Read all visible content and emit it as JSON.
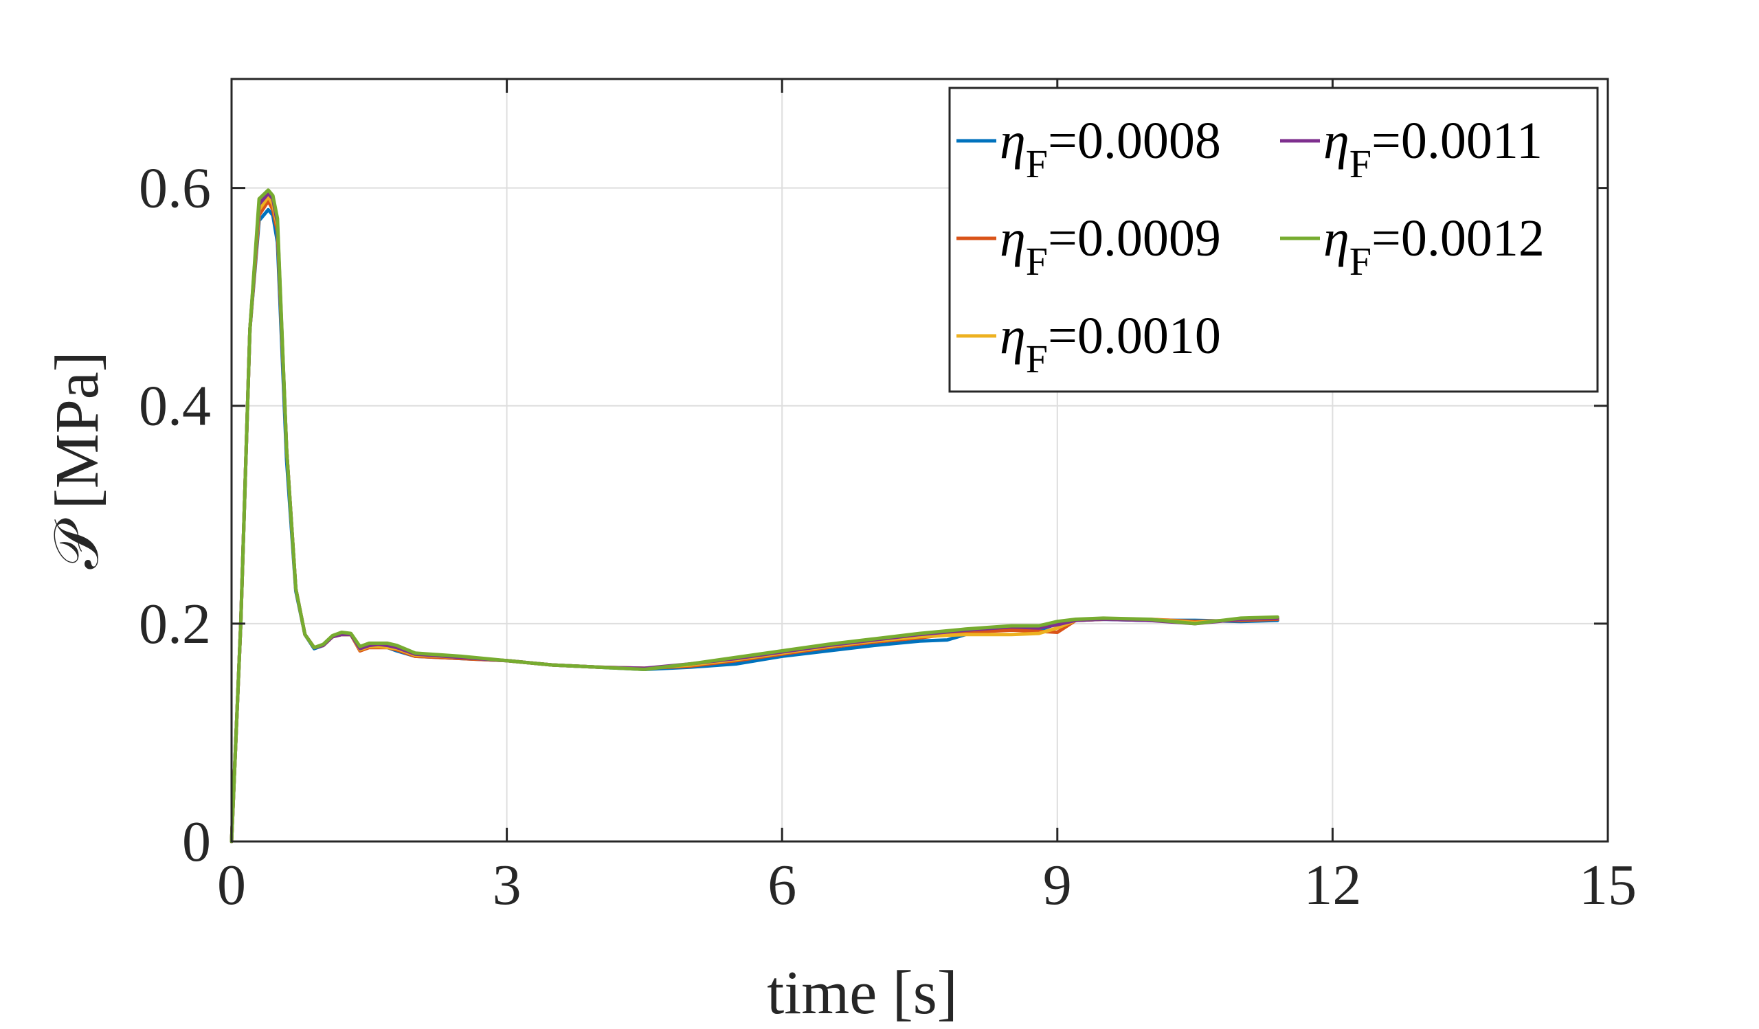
{
  "chart_data": {
    "type": "line",
    "title": "",
    "xlabel": "time [s]",
    "ylabel": "𝒫 [MPa]",
    "xlim": [
      0,
      15
    ],
    "ylim": [
      0,
      0.7
    ],
    "xticks": [
      0,
      3,
      6,
      9,
      12,
      15
    ],
    "xtick_labels": [
      "0",
      "3",
      "6",
      "9",
      "12",
      "15"
    ],
    "yticks": [
      0,
      0.2,
      0.4,
      0.6
    ],
    "ytick_labels": [
      "0",
      "0.2",
      "0.4",
      "0.6"
    ],
    "grid": true,
    "legend_position": "top-right",
    "legend_symbol": "η",
    "legend_subscript": "F",
    "series": [
      {
        "name": "0.0008",
        "legend_text": "=0.0008",
        "color": "#0072BD",
        "x": [
          0,
          0.1,
          0.2,
          0.3,
          0.4,
          0.45,
          0.5,
          0.6,
          0.7,
          0.8,
          0.9,
          1.0,
          1.1,
          1.2,
          1.3,
          1.4,
          1.5,
          1.6,
          1.7,
          1.8,
          2.0,
          2.5,
          3.0,
          3.5,
          4.0,
          4.5,
          5.0,
          5.5,
          6.0,
          6.5,
          7.0,
          7.5,
          7.8,
          8.0,
          8.5,
          8.8,
          9.0,
          9.2,
          9.5,
          10.0,
          10.5,
          11.0,
          11.4
        ],
        "y": [
          0,
          0.2,
          0.47,
          0.57,
          0.58,
          0.575,
          0.55,
          0.35,
          0.23,
          0.19,
          0.177,
          0.18,
          0.188,
          0.19,
          0.19,
          0.178,
          0.18,
          0.18,
          0.178,
          0.175,
          0.17,
          0.168,
          0.166,
          0.162,
          0.16,
          0.158,
          0.16,
          0.163,
          0.17,
          0.175,
          0.18,
          0.184,
          0.185,
          0.19,
          0.196,
          0.194,
          0.2,
          0.203,
          0.204,
          0.203,
          0.203,
          0.202,
          0.203
        ]
      },
      {
        "name": "0.0009",
        "legend_text": "=0.0009",
        "color": "#D95319",
        "x": [
          0,
          0.1,
          0.2,
          0.3,
          0.4,
          0.45,
          0.5,
          0.6,
          0.7,
          0.8,
          0.9,
          1.0,
          1.1,
          1.2,
          1.3,
          1.4,
          1.5,
          1.6,
          1.7,
          1.8,
          2.0,
          2.5,
          3.0,
          3.5,
          4.0,
          4.5,
          5.0,
          5.5,
          6.0,
          6.5,
          7.0,
          7.5,
          8.0,
          8.5,
          8.8,
          9.0,
          9.2,
          9.5,
          10.0,
          10.5,
          11.0,
          11.4
        ],
        "y": [
          0,
          0.2,
          0.47,
          0.575,
          0.588,
          0.58,
          0.56,
          0.36,
          0.232,
          0.19,
          0.178,
          0.18,
          0.188,
          0.19,
          0.19,
          0.175,
          0.178,
          0.178,
          0.178,
          0.176,
          0.17,
          0.168,
          0.166,
          0.162,
          0.16,
          0.159,
          0.161,
          0.166,
          0.172,
          0.178,
          0.183,
          0.187,
          0.192,
          0.194,
          0.193,
          0.192,
          0.203,
          0.204,
          0.204,
          0.202,
          0.203,
          0.204
        ]
      },
      {
        "name": "0.0010",
        "legend_text": "=0.0010",
        "color": "#EDB120",
        "x": [
          0,
          0.1,
          0.2,
          0.3,
          0.4,
          0.45,
          0.5,
          0.6,
          0.7,
          0.8,
          0.9,
          1.0,
          1.1,
          1.2,
          1.3,
          1.4,
          1.5,
          1.6,
          1.7,
          1.8,
          2.0,
          2.5,
          3.0,
          3.5,
          4.0,
          4.5,
          5.0,
          5.5,
          6.0,
          6.5,
          7.0,
          7.5,
          8.0,
          8.5,
          8.8,
          9.0,
          9.2,
          9.5,
          10.0,
          10.5,
          11.0,
          11.4
        ],
        "y": [
          0,
          0.2,
          0.47,
          0.58,
          0.592,
          0.585,
          0.565,
          0.36,
          0.232,
          0.19,
          0.178,
          0.18,
          0.188,
          0.19,
          0.19,
          0.176,
          0.179,
          0.179,
          0.178,
          0.177,
          0.171,
          0.169,
          0.166,
          0.162,
          0.16,
          0.159,
          0.162,
          0.167,
          0.173,
          0.179,
          0.184,
          0.188,
          0.19,
          0.19,
          0.191,
          0.196,
          0.203,
          0.204,
          0.204,
          0.201,
          0.204,
          0.205
        ]
      },
      {
        "name": "0.0011",
        "legend_text": "=0.0011",
        "color": "#7E2F8E",
        "x": [
          0,
          0.1,
          0.2,
          0.3,
          0.4,
          0.45,
          0.5,
          0.6,
          0.7,
          0.8,
          0.9,
          1.0,
          1.1,
          1.2,
          1.3,
          1.4,
          1.5,
          1.6,
          1.7,
          1.8,
          2.0,
          2.5,
          3.0,
          3.5,
          4.0,
          4.5,
          5.0,
          5.5,
          6.0,
          6.5,
          7.0,
          7.5,
          8.0,
          8.5,
          8.8,
          9.0,
          9.2,
          9.5,
          10.0,
          10.5,
          11.0,
          11.4
        ],
        "y": [
          0,
          0.2,
          0.47,
          0.585,
          0.595,
          0.59,
          0.568,
          0.36,
          0.232,
          0.19,
          0.178,
          0.18,
          0.188,
          0.19,
          0.19,
          0.177,
          0.18,
          0.181,
          0.18,
          0.178,
          0.172,
          0.169,
          0.166,
          0.162,
          0.16,
          0.159,
          0.163,
          0.168,
          0.174,
          0.18,
          0.185,
          0.19,
          0.194,
          0.197,
          0.196,
          0.199,
          0.203,
          0.204,
          0.203,
          0.2,
          0.204,
          0.205
        ]
      },
      {
        "name": "0.0012",
        "legend_text": "=0.0012",
        "color": "#77AC30",
        "x": [
          0,
          0.1,
          0.2,
          0.3,
          0.4,
          0.45,
          0.5,
          0.6,
          0.7,
          0.8,
          0.9,
          1.0,
          1.1,
          1.2,
          1.3,
          1.4,
          1.5,
          1.6,
          1.7,
          1.8,
          2.0,
          2.5,
          3.0,
          3.5,
          4.0,
          4.5,
          5.0,
          5.5,
          6.0,
          6.5,
          7.0,
          7.5,
          8.0,
          8.5,
          8.8,
          9.0,
          9.2,
          9.5,
          10.0,
          10.5,
          11.0,
          11.4
        ],
        "y": [
          0,
          0.2,
          0.47,
          0.59,
          0.598,
          0.593,
          0.572,
          0.36,
          0.232,
          0.19,
          0.178,
          0.181,
          0.189,
          0.192,
          0.191,
          0.179,
          0.182,
          0.182,
          0.182,
          0.18,
          0.173,
          0.17,
          0.166,
          0.162,
          0.16,
          0.158,
          0.163,
          0.169,
          0.175,
          0.181,
          0.186,
          0.191,
          0.195,
          0.198,
          0.198,
          0.202,
          0.204,
          0.205,
          0.204,
          0.2,
          0.205,
          0.206
        ]
      }
    ]
  }
}
